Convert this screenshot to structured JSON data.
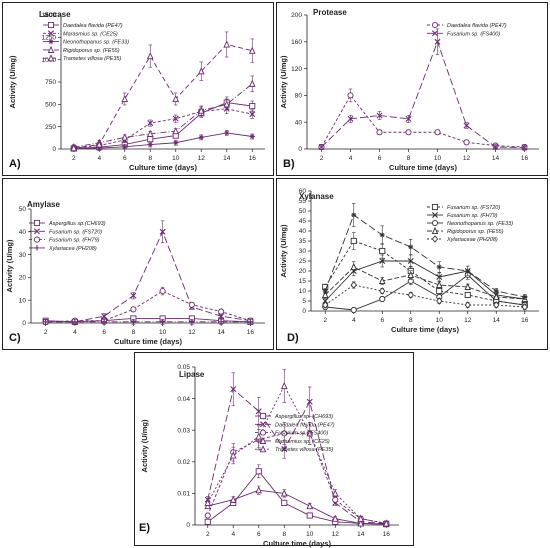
{
  "colors": {
    "series": "#6a2c70",
    "xylanase": "#333333",
    "axis": "#222222"
  },
  "chart_data": [
    {
      "id": "A",
      "panel_label": "A)",
      "title": "Laccase",
      "type": "line",
      "xlabel": "Culture time (days)",
      "ylabel": "Activity (U/mg)",
      "x": [
        2,
        4,
        6,
        8,
        10,
        12,
        14,
        16
      ],
      "xticks": [
        2,
        4,
        6,
        8,
        10,
        12,
        14,
        16
      ],
      "ylim": [
        0,
        1500
      ],
      "yticks": [
        0,
        250,
        500,
        750,
        1000,
        1250,
        1500
      ],
      "ytick_labels": [
        "0",
        "250",
        "500",
        "750",
        "1000",
        "1250",
        "1500"
      ],
      "legend": "top-left",
      "series": [
        {
          "name": "Daedalea flavida (PE47)",
          "values": [
            5,
            20,
            50,
            110,
            150,
            400,
            520,
            480
          ],
          "marker": "square",
          "dash": ""
        },
        {
          "name": "Marasmius sp. (CE25)",
          "values": [
            10,
            40,
            100,
            290,
            340,
            420,
            450,
            390
          ],
          "marker": "x",
          "dash": "3,2"
        },
        {
          "name": "Neonothopanus sp. (FE33)",
          "values": [
            5,
            10,
            25,
            50,
            70,
            130,
            180,
            140
          ],
          "marker": "star",
          "dash": ""
        },
        {
          "name": "Rigidoporus sp. (FE55)",
          "values": [
            20,
            70,
            130,
            170,
            200,
            430,
            500,
            730
          ],
          "marker": "triangle",
          "dash": "6,2,1,2"
        },
        {
          "name": "Trametes villosa (PE35)",
          "values": [
            10,
            50,
            560,
            1040,
            560,
            870,
            1170,
            1100
          ],
          "marker": "triangle",
          "dash": "5,3"
        }
      ]
    },
    {
      "id": "B",
      "panel_label": "B)",
      "title": "Protease",
      "type": "line",
      "xlabel": "Culture time (days)",
      "ylabel": "Activity (U/mg)",
      "x": [
        2,
        4,
        6,
        8,
        10,
        12,
        14,
        16
      ],
      "xticks": [
        2,
        4,
        6,
        8,
        10,
        12,
        14,
        16
      ],
      "ylim": [
        0,
        200
      ],
      "yticks": [
        0,
        40,
        80,
        120,
        160,
        200
      ],
      "ytick_labels": [
        "0",
        "40",
        "80",
        "120",
        "160",
        "200"
      ],
      "legend": "top-right",
      "series": [
        {
          "name": "Daedalea flavida (PE47)",
          "values": [
            3,
            80,
            25,
            25,
            25,
            10,
            5,
            3
          ],
          "marker": "circle",
          "dash": "3,2"
        },
        {
          "name": "Fusarium sp. (FS400)",
          "values": [
            3,
            45,
            50,
            45,
            160,
            35,
            3,
            2
          ],
          "marker": "x",
          "dash": "7,3"
        }
      ]
    },
    {
      "id": "C",
      "panel_label": "C)",
      "title": "Amylase",
      "type": "line",
      "xlabel": "Culture time (days)",
      "ylabel": "Activity (U/mg)",
      "x": [
        2,
        4,
        6,
        8,
        10,
        12,
        14,
        16
      ],
      "xticks": [
        2,
        4,
        6,
        8,
        10,
        12,
        14,
        16
      ],
      "ylim": [
        0,
        50
      ],
      "yticks": [
        0,
        10,
        20,
        30,
        40,
        50
      ],
      "ytick_labels": [
        "0",
        "10",
        "20",
        "30",
        "40",
        "50"
      ],
      "legend": "left",
      "series": [
        {
          "name": "Aspergillus sp.(CH693)",
          "values": [
            1,
            0.5,
            1,
            2,
            2,
            2,
            1,
            0.5
          ],
          "marker": "square",
          "dash": ""
        },
        {
          "name": "Fusarium sp. (FS720)",
          "values": [
            0.5,
            0.5,
            3,
            12,
            40,
            7,
            3,
            1
          ],
          "marker": "x",
          "dash": "7,3"
        },
        {
          "name": "Fusarium sp. (FH79)",
          "values": [
            0.5,
            1,
            1,
            6,
            14,
            8,
            5,
            1
          ],
          "marker": "circle",
          "dash": "3,2"
        },
        {
          "name": "Xylariacea (PH208)",
          "values": [
            0.5,
            0.5,
            0.5,
            0.5,
            0.5,
            0.5,
            0.5,
            0.5
          ],
          "marker": "plus",
          "dash": "6,2,1,2"
        }
      ]
    },
    {
      "id": "D",
      "panel_label": "D)",
      "title": "Xylanase",
      "type": "line",
      "xlabel": "Culture time (days)",
      "ylabel": "Activity (U/mg)",
      "x": [
        2,
        4,
        6,
        8,
        10,
        12,
        14,
        16
      ],
      "xticks": [
        2,
        4,
        6,
        8,
        10,
        12,
        14,
        16
      ],
      "ylim": [
        0,
        60
      ],
      "yticks": [
        0,
        5,
        10,
        15,
        20,
        25,
        30,
        35,
        40,
        45,
        50,
        55,
        60
      ],
      "ytick_labels": [
        "0",
        "5",
        "10",
        "15",
        "20",
        "25",
        "30",
        "35",
        "40",
        "45",
        "50",
        "55",
        "60"
      ],
      "legend": "top-right",
      "series": [
        {
          "name": "Fusarium sp. (FS720)",
          "values": [
            12,
            35,
            30,
            20,
            10,
            8,
            5,
            3
          ],
          "marker": "square",
          "dash": "3,2"
        },
        {
          "name": "Fusarium sp. (FH79)",
          "values": [
            5,
            20,
            25,
            25,
            17,
            20,
            8,
            6
          ],
          "marker": "x",
          "dash": ""
        },
        {
          "name": "Neonothopanus sp. (FE33)",
          "values": [
            2,
            0.5,
            6,
            15,
            7,
            18,
            5,
            3
          ],
          "marker": "circle",
          "dash": ""
        },
        {
          "name": "Rigidoporus sp. (FE55)",
          "values": [
            8,
            22,
            15,
            18,
            13,
            12,
            7,
            6
          ],
          "marker": "triangle",
          "dash": "5,2"
        },
        {
          "name": "Xylariaceae (PH208)",
          "values": [
            3,
            13,
            10,
            8,
            5,
            3,
            3,
            2
          ],
          "marker": "diamond",
          "dash": "2,2"
        },
        {
          "name": "",
          "values": [
            10,
            48,
            38,
            32,
            22,
            20,
            10,
            7
          ],
          "marker": "star",
          "dash": "7,3"
        }
      ]
    },
    {
      "id": "E",
      "panel_label": "E)",
      "title": "Lipase",
      "type": "line",
      "xlabel": "Culture time (days)",
      "ylabel": "Activity (U/mg)",
      "x": [
        2,
        4,
        6,
        8,
        10,
        12,
        14,
        16
      ],
      "xticks": [
        2,
        4,
        6,
        8,
        10,
        12,
        14,
        16
      ],
      "ylim": [
        0,
        0.05
      ],
      "yticks": [
        0,
        0.01,
        0.02,
        0.03,
        0.04,
        0.05
      ],
      "ytick_labels": [
        "0",
        "0.01",
        "0.02",
        "0.03",
        "0.04",
        "0.05"
      ],
      "legend": "right",
      "series": [
        {
          "name": "Aspergillus sp. (CH693)",
          "values": [
            0.001,
            0.007,
            0.017,
            0.007,
            0.003,
            0.001,
            0.0005,
            0.0003
          ],
          "marker": "square",
          "dash": ""
        },
        {
          "name": "Daedalea flavida (PE47)",
          "values": [
            0.008,
            0.043,
            0.036,
            0.024,
            0.039,
            0.007,
            0.001,
            0.0005
          ],
          "marker": "x",
          "dash": "7,3"
        },
        {
          "name": "Fusarium sp. (FS400)",
          "values": [
            0.003,
            0.023,
            0.027,
            0.029,
            0.029,
            0.008,
            0.002,
            0.0005
          ],
          "marker": "circle",
          "dash": "3,2"
        },
        {
          "name": "Marasmius sp. (CE25)",
          "values": [
            0.006,
            0.008,
            0.011,
            0.01,
            0.006,
            0.002,
            0.0005,
            0.0003
          ],
          "marker": "triangle",
          "dash": ""
        },
        {
          "name": "Trametes villosa (PE35)",
          "values": [
            0.007,
            0.022,
            0.028,
            0.044,
            0.029,
            0.01,
            0.002,
            0.0005
          ],
          "marker": "triangle",
          "dash": "2,2"
        }
      ]
    }
  ]
}
